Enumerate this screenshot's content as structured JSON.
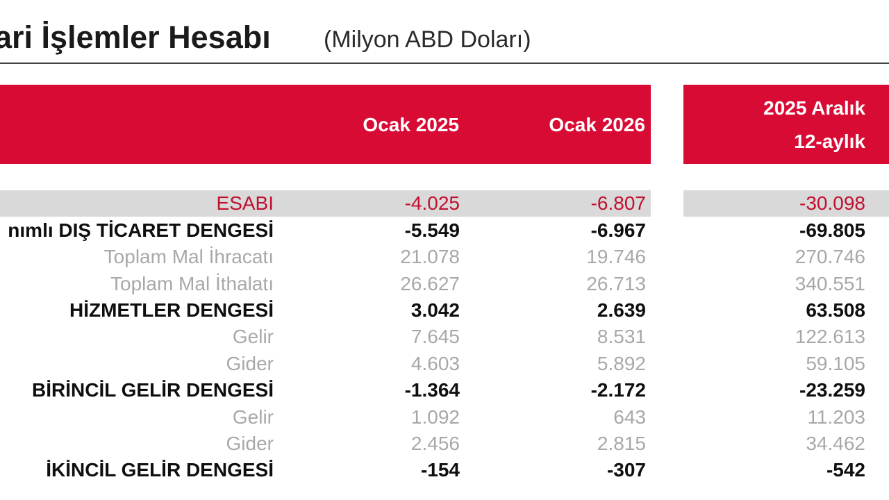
{
  "title": {
    "main": "ari İşlemler Hesabı",
    "unit": "(Milyon ABD Doları)"
  },
  "header": {
    "col1": "Ocak 2025",
    "col2": "Ocak 2026",
    "col3_line1": "2025 Aralık",
    "col3_line2": "12-aylık"
  },
  "colors": {
    "accent": "#d80b35",
    "highlight_text": "#c0102e",
    "highlight_band": "#d9d9d9",
    "sub_text": "#a8a8a8"
  },
  "rows": [
    {
      "label": "ESABI",
      "v1": "-4.025",
      "v2": "-6.807",
      "v3": "-30.098",
      "style": "highlight"
    },
    {
      "label": "nımlı DIŞ TİCARET DENGESİ",
      "v1": "-5.549",
      "v2": "-6.967",
      "v3": "-69.805",
      "style": "bold"
    },
    {
      "label": "Toplam Mal İhracatı",
      "v1": "21.078",
      "v2": "19.746",
      "v3": "270.746",
      "style": "sub"
    },
    {
      "label": "Toplam Mal İthalatı",
      "v1": "26.627",
      "v2": "26.713",
      "v3": "340.551",
      "style": "sub"
    },
    {
      "label": "HİZMETLER DENGESİ",
      "v1": "3.042",
      "v2": "2.639",
      "v3": "63.508",
      "style": "bold"
    },
    {
      "label": "Gelir",
      "v1": "7.645",
      "v2": "8.531",
      "v3": "122.613",
      "style": "sub"
    },
    {
      "label": "Gider",
      "v1": "4.603",
      "v2": "5.892",
      "v3": "59.105",
      "style": "sub"
    },
    {
      "label": "BİRİNCİL GELİR DENGESİ",
      "v1": "-1.364",
      "v2": "-2.172",
      "v3": "-23.259",
      "style": "bold"
    },
    {
      "label": "Gelir",
      "v1": "1.092",
      "v2": "643",
      "v3": "11.203",
      "style": "sub"
    },
    {
      "label": "Gider",
      "v1": "2.456",
      "v2": "2.815",
      "v3": "34.462",
      "style": "sub"
    },
    {
      "label": "İKİNCİL GELİR DENGESİ",
      "v1": "-154",
      "v2": "-307",
      "v3": "-542",
      "style": "bold"
    }
  ]
}
